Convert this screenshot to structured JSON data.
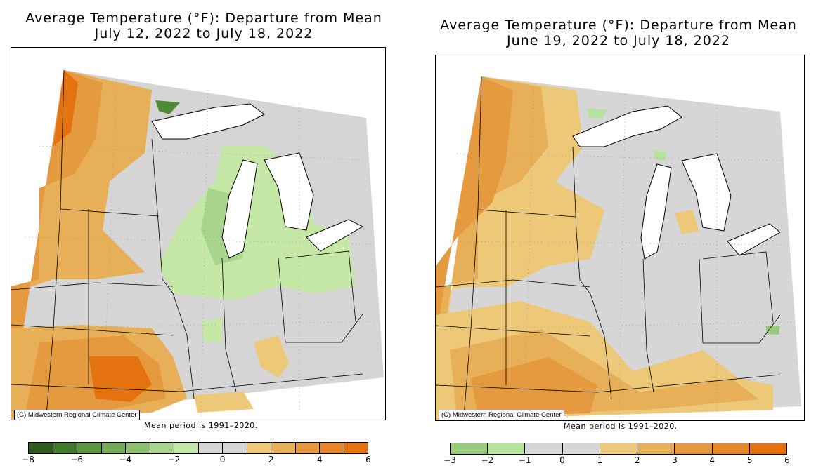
{
  "left_map": {
    "title_line1": "Average Temperature (°F): Departure from Mean",
    "title_line2": "July 12, 2022 to July 18, 2022",
    "credit": "(C) Midwestern Regional Climate Center",
    "mean_note": "Mean period is 1991–2020.",
    "legend": {
      "colors": [
        "#2e5a1c",
        "#3f7a2a",
        "#5a953f",
        "#74a857",
        "#8fc070",
        "#a8d58b",
        "#c6e8a6",
        "#d5d5d5",
        "#d5d5d5",
        "#ecc878",
        "#e7b058",
        "#e69a3f",
        "#e6862a",
        "#e4730f"
      ],
      "tick_labels": [
        "−8",
        "−6",
        "−4",
        "−2",
        "0",
        "2",
        "4",
        "6"
      ]
    }
  },
  "right_map": {
    "title_line1": "Average Temperature (°F): Departure from Mean",
    "title_line2": "June 19, 2022 to July 18, 2022",
    "credit": "(C) Midwestern Regional Climate Center",
    "mean_note": "Mean period is 1991–2020.",
    "legend": {
      "colors": [
        "#98c97e",
        "#b5e39c",
        "#d6d6d6",
        "#d6d6d6",
        "#ecc878",
        "#e7b058",
        "#e69a3f",
        "#e6862a",
        "#e4730f"
      ],
      "tick_labels": [
        "−3",
        "−2",
        "−1",
        "0",
        "1",
        "2",
        "3",
        "4",
        "5",
        "6"
      ]
    }
  },
  "colors": {
    "neutral": "#d5d5d5",
    "warm_light": "#ecc878",
    "warm_mid": "#e7b058",
    "warm_strong": "#e69a3f",
    "warm_max": "#e4730f",
    "cool_light": "#c6e8a6",
    "cool_mid": "#8fc070",
    "cool_strong": "#4d8a33",
    "lake": "#ffffff"
  }
}
